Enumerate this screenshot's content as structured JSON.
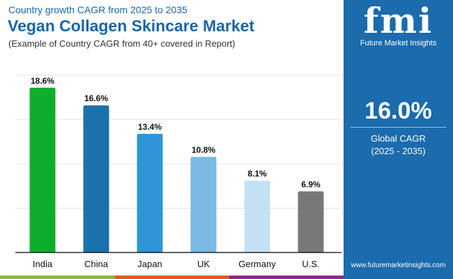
{
  "header": {
    "kicker": "Country growth CAGR from 2025 to 2035",
    "title": "Vegan Collagen Skincare Market",
    "subtitle": "(Example of Country CAGR from 40+ covered in Report)"
  },
  "panel": {
    "logo_text": "fmi",
    "logo_sub": "Future Market Insights",
    "global_value": "16.0%",
    "global_label": "Global CAGR",
    "global_period": "(2025 - 2035)",
    "url": "www.futuremarketinsights.com",
    "color": "#1b6bad"
  },
  "chart_data": {
    "type": "bar",
    "categories": [
      "India",
      "China",
      "Japan",
      "UK",
      "Germany",
      "U.S."
    ],
    "values": [
      18.6,
      16.6,
      13.4,
      10.8,
      8.1,
      6.9
    ],
    "labels": [
      "18.6%",
      "16.6%",
      "13.4%",
      "10.8%",
      "8.1%",
      "6.9%"
    ],
    "colors": [
      "#0fad2e",
      "#1b71ab",
      "#2f95d5",
      "#7ab9e2",
      "#c4e1f4",
      "#787878"
    ],
    "ylim": [
      0,
      20
    ],
    "grid": true,
    "title": "",
    "xlabel": "",
    "ylabel": ""
  },
  "stripe_colors": [
    "#8ab83f",
    "#e05a26",
    "#8c2a8c"
  ]
}
